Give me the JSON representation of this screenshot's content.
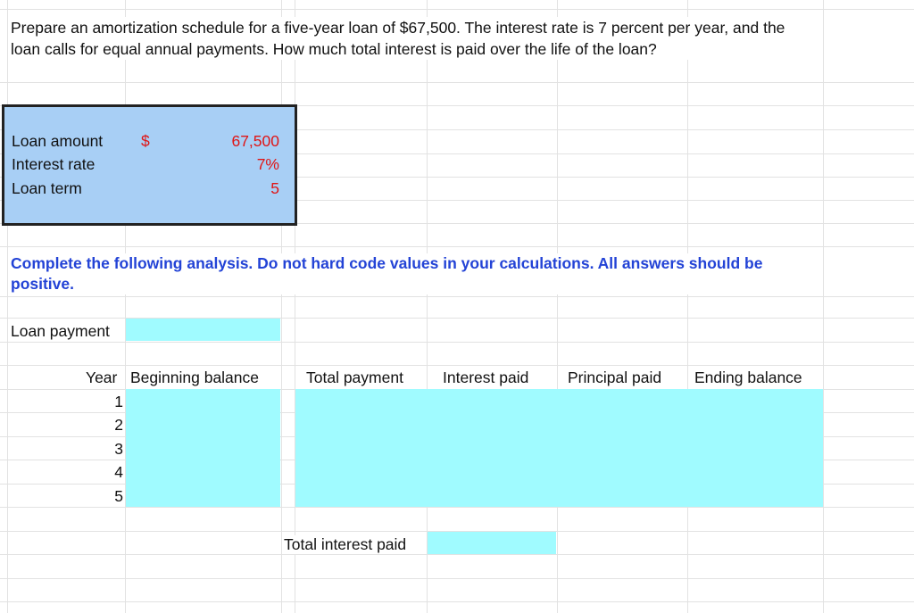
{
  "question": "Prepare an amortization schedule for a five-year loan of $67,500. The interest rate is 7 percent per year, and the loan calls for equal annual payments. How much total interest is paid over the life of the loan?",
  "given": {
    "loan_amount_label": "Loan amount",
    "loan_amount_currency": "$",
    "loan_amount_value": "67,500",
    "interest_rate_label": "Interest rate",
    "interest_rate_value": "7%",
    "loan_term_label": "Loan term",
    "loan_term_value": "5"
  },
  "instruction": "Complete the following analysis. Do not hard code values in your calculations. All answers should be positive.",
  "loan_payment_label": "Loan payment",
  "table": {
    "headers": {
      "year": "Year",
      "beginning_balance": "Beginning balance",
      "total_payment": "Total payment",
      "interest_paid": "Interest paid",
      "principal_paid": "Principal paid",
      "ending_balance": "Ending balance"
    },
    "years": [
      "1",
      "2",
      "3",
      "4",
      "5"
    ]
  },
  "total_interest_label": "Total interest paid",
  "colors": {
    "given_box": "#a8cff5",
    "input_cell": "#a0fbff",
    "value_red": "#e01515",
    "instruction_blue": "#2343d6"
  }
}
